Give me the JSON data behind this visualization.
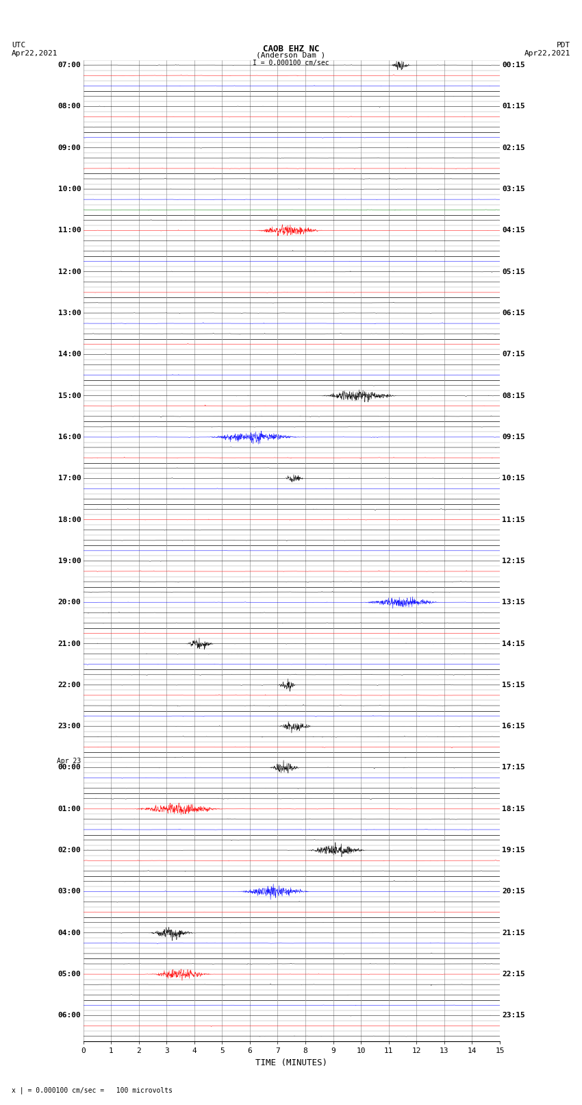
{
  "title_line1": "CAOB EHZ NC",
  "title_line2": "(Anderson Dam )",
  "title_line3": "I = 0.000100 cm/sec",
  "left_header_line1": "UTC",
  "left_header_line2": "Apr22,2021",
  "right_header_line1": "PDT",
  "right_header_line2": "Apr22,2021",
  "bottom_label": "TIME (MINUTES)",
  "bottom_note": "x | = 0.000100 cm/sec =   100 microvolts",
  "utc_times": [
    "07:00",
    "",
    "",
    "",
    "08:00",
    "",
    "",
    "",
    "09:00",
    "",
    "",
    "",
    "10:00",
    "",
    "",
    "",
    "11:00",
    "",
    "",
    "",
    "12:00",
    "",
    "",
    "",
    "13:00",
    "",
    "",
    "",
    "14:00",
    "",
    "",
    "",
    "15:00",
    "",
    "",
    "",
    "16:00",
    "",
    "",
    "",
    "17:00",
    "",
    "",
    "",
    "18:00",
    "",
    "",
    "",
    "19:00",
    "",
    "",
    "",
    "20:00",
    "",
    "",
    "",
    "21:00",
    "",
    "",
    "",
    "22:00",
    "",
    "",
    "",
    "23:00",
    "",
    "",
    "",
    "Apr 23\n00:00",
    "",
    "",
    "",
    "01:00",
    "",
    "",
    "",
    "02:00",
    "",
    "",
    "",
    "03:00",
    "",
    "",
    "",
    "04:00",
    "",
    "",
    "",
    "05:00",
    "",
    "",
    "",
    "06:00",
    "",
    ""
  ],
  "pdt_times": [
    "00:15",
    "",
    "",
    "",
    "01:15",
    "",
    "",
    "",
    "02:15",
    "",
    "",
    "",
    "03:15",
    "",
    "",
    "",
    "04:15",
    "",
    "",
    "",
    "05:15",
    "",
    "",
    "",
    "06:15",
    "",
    "",
    "",
    "07:15",
    "",
    "",
    "",
    "08:15",
    "",
    "",
    "",
    "09:15",
    "",
    "",
    "",
    "10:15",
    "",
    "",
    "",
    "11:15",
    "",
    "",
    "",
    "12:15",
    "",
    "",
    "",
    "13:15",
    "",
    "",
    "",
    "14:15",
    "",
    "",
    "",
    "15:15",
    "",
    "",
    "",
    "16:15",
    "",
    "",
    "",
    "17:15",
    "",
    "",
    "",
    "18:15",
    "",
    "",
    "",
    "19:15",
    "",
    "",
    "",
    "20:15",
    "",
    "",
    "",
    "21:15",
    "",
    "",
    "",
    "22:15",
    "",
    "",
    "",
    "23:15",
    "",
    ""
  ],
  "n_traces": 95,
  "x_min": 0,
  "x_max": 15,
  "x_ticks": [
    0,
    1,
    2,
    3,
    4,
    5,
    6,
    7,
    8,
    9,
    10,
    11,
    12,
    13,
    14,
    15
  ],
  "bg_color": "#ffffff",
  "grid_color_minor": "#999999",
  "grid_color_major": "#444444",
  "fontsize_title": 9,
  "fontsize_labels": 8,
  "fontsize_ticks": 8,
  "fontsize_times": 8,
  "trace_colors": [
    "#000000",
    "#ff0000",
    "#0000ff",
    "#008000"
  ],
  "trace_color_pattern": [
    0,
    1,
    2,
    0,
    0,
    1,
    0,
    2,
    0,
    0,
    1,
    0,
    0,
    2,
    3,
    0,
    1,
    0,
    0,
    2,
    0,
    0,
    1,
    0,
    0,
    2,
    0,
    1,
    0,
    0,
    2,
    0,
    0,
    1,
    0,
    0,
    2,
    0,
    1,
    0,
    0,
    2,
    0,
    0,
    1,
    0,
    0,
    2,
    0,
    1,
    0,
    0,
    2,
    0,
    0,
    1,
    0,
    0,
    2,
    0,
    0,
    1,
    0,
    2,
    0,
    0,
    1,
    0,
    0,
    2,
    0,
    0,
    1,
    0,
    2,
    0,
    0,
    1,
    0,
    0,
    2,
    0,
    1,
    0,
    0,
    2,
    0,
    0,
    1,
    0,
    0,
    2,
    0,
    1,
    0
  ],
  "noise_amplitude": 0.012,
  "spike_amplitude": 0.08,
  "active_trace_amplitude": 0.25,
  "active_traces": [
    0,
    16,
    32,
    36,
    40,
    52,
    56,
    60,
    64,
    68,
    72,
    76,
    80,
    84,
    88
  ],
  "n_points": 1800
}
